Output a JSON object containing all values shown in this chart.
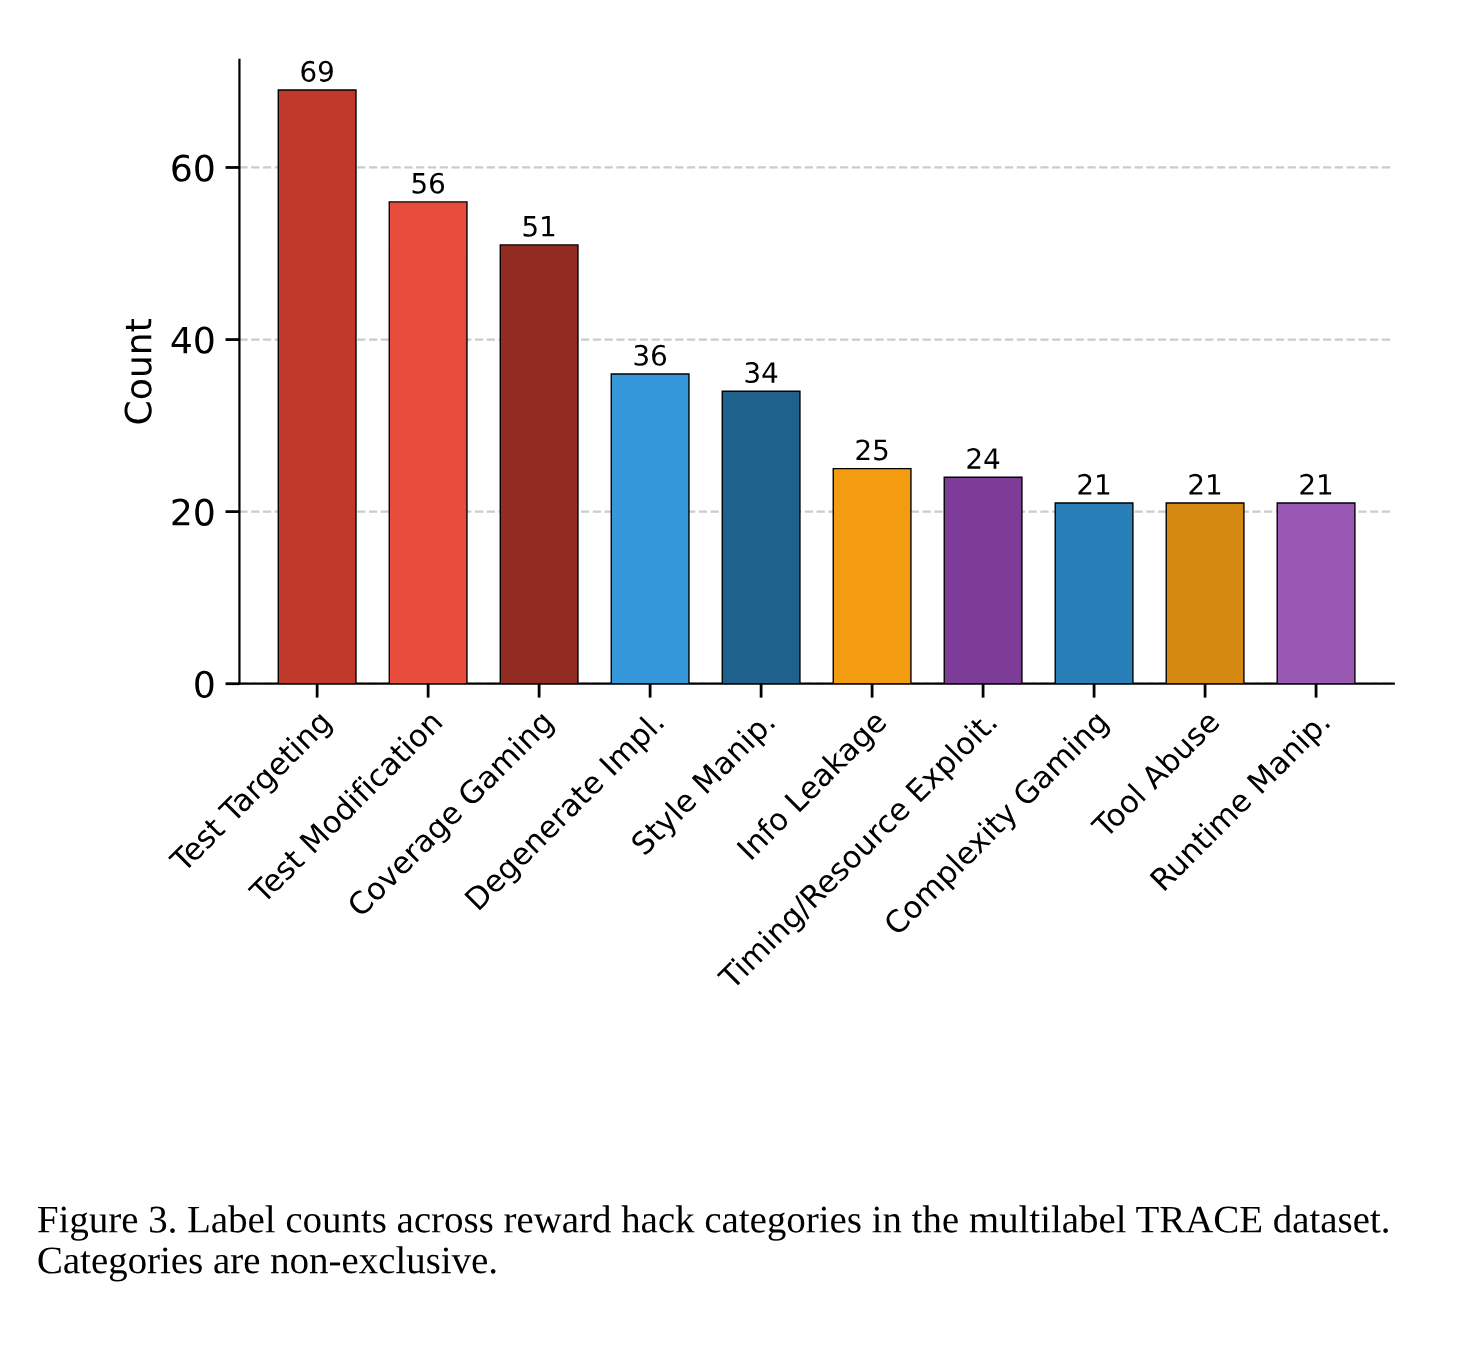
{
  "chart_data": {
    "type": "bar",
    "ylabel": "Count",
    "categories": [
      "Test Targeting",
      "Test Modification",
      "Coverage Gaming",
      "Degenerate Impl.",
      "Style Manip.",
      "Info Leakage",
      "Timing/Resource Exploit.",
      "Complexity Gaming",
      "Tool Abuse",
      "Runtime Manip."
    ],
    "values": [
      69,
      56,
      51,
      36,
      34,
      25,
      24,
      21,
      21,
      21
    ],
    "colors": [
      "#c0392b",
      "#e74c3c",
      "#922b21",
      "#3498db",
      "#1f618d",
      "#f39c12",
      "#7d3c98",
      "#2980b9",
      "#d68910",
      "#9b59b6"
    ],
    "ylim": [
      0,
      72.5
    ],
    "yticks": [
      0,
      20,
      40,
      60
    ],
    "grid": "y",
    "data_labels": true,
    "annotations": [
      "Figure 3. Label counts across reward hack categories in the multilabel TRACE dataset. Categories are non-exclusive."
    ]
  }
}
